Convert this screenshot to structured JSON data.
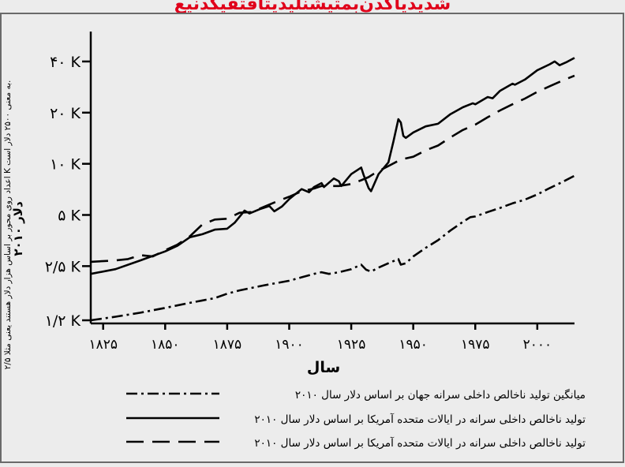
{
  "header_title": "شدیدیاکدن‌بمثیشنلیدیتاقتفیکدنیع",
  "colors": {
    "background": "#ececec",
    "header": "#e0001a",
    "line": "#000000",
    "border": "#6a6a6a"
  },
  "chart_data": {
    "type": "line",
    "xlabel": "سال",
    "ylabel_main": "دلار ۲۰۱۰",
    "ylabel_note": "اعداد روی محور بر اساس هزار دلار هستند یعنی مثلا ۲/۵ K به معنی ۲۵۰۰ دلار است.",
    "x_ticks": [
      1825,
      1850,
      1875,
      1900,
      1925,
      1950,
      1975,
      2000
    ],
    "x_tick_labels": [
      "۱۸۲۵",
      "۱۸۵۰",
      "۱۸۷۵",
      "۱۹۰۰",
      "۱۹۲۵",
      "۱۹۵۰",
      "۱۹۷۵",
      "۲۰۰۰"
    ],
    "y_scale": "log",
    "y_ticks": [
      1.2,
      2.5,
      5,
      10,
      20,
      40
    ],
    "y_tick_labels": [
      "۱/۲ K",
      "۲/۵ K",
      "۵ K",
      "۱۰ K",
      "۲۰ K",
      "۴۰ K"
    ],
    "xlim": [
      1820,
      2015
    ],
    "ylim": [
      1.15,
      60
    ],
    "legend_position": "bottom",
    "series": [
      {
        "name": "میانگین تولید ناخالص داخلی سرانه جهان بر اساس دلار سال ۲۰۱۰",
        "style": "dashdot",
        "points": [
          [
            1820,
            1.2
          ],
          [
            1830,
            1.26
          ],
          [
            1840,
            1.33
          ],
          [
            1850,
            1.42
          ],
          [
            1860,
            1.52
          ],
          [
            1870,
            1.62
          ],
          [
            1875,
            1.72
          ],
          [
            1880,
            1.8
          ],
          [
            1890,
            1.93
          ],
          [
            1900,
            2.05
          ],
          [
            1905,
            2.15
          ],
          [
            1910,
            2.25
          ],
          [
            1913,
            2.3
          ],
          [
            1916,
            2.25
          ],
          [
            1920,
            2.3
          ],
          [
            1925,
            2.4
          ],
          [
            1929,
            2.55
          ],
          [
            1931,
            2.38
          ],
          [
            1933,
            2.32
          ],
          [
            1936,
            2.45
          ],
          [
            1940,
            2.6
          ],
          [
            1944,
            2.75
          ],
          [
            1945,
            2.55
          ],
          [
            1947,
            2.6
          ],
          [
            1950,
            2.85
          ],
          [
            1955,
            3.2
          ],
          [
            1960,
            3.55
          ],
          [
            1965,
            4.05
          ],
          [
            1970,
            4.55
          ],
          [
            1973,
            4.85
          ],
          [
            1975,
            4.9
          ],
          [
            1980,
            5.2
          ],
          [
            1985,
            5.5
          ],
          [
            1990,
            5.85
          ],
          [
            1995,
            6.15
          ],
          [
            2000,
            6.6
          ],
          [
            2005,
            7.2
          ],
          [
            2010,
            7.8
          ],
          [
            2015,
            8.5
          ]
        ]
      },
      {
        "name": "تولید ناخالص داخلی سرانه در ایالات متحده آمریکا بر اساس دلار سال ۲۰۱۰",
        "style": "solid",
        "points": [
          [
            1820,
            2.25
          ],
          [
            1830,
            2.4
          ],
          [
            1840,
            2.7
          ],
          [
            1850,
            3.05
          ],
          [
            1855,
            3.3
          ],
          [
            1860,
            3.7
          ],
          [
            1865,
            3.85
          ],
          [
            1870,
            4.1
          ],
          [
            1875,
            4.15
          ],
          [
            1878,
            4.5
          ],
          [
            1882,
            5.3
          ],
          [
            1884,
            5.1
          ],
          [
            1888,
            5.4
          ],
          [
            1892,
            5.65
          ],
          [
            1894,
            5.25
          ],
          [
            1897,
            5.6
          ],
          [
            1900,
            6.2
          ],
          [
            1905,
            7.1
          ],
          [
            1908,
            6.8
          ],
          [
            1910,
            7.3
          ],
          [
            1913,
            7.7
          ],
          [
            1914,
            7.3
          ],
          [
            1918,
            8.2
          ],
          [
            1920,
            7.9
          ],
          [
            1921,
            7.4
          ],
          [
            1925,
            8.7
          ],
          [
            1929,
            9.5
          ],
          [
            1930,
            8.6
          ],
          [
            1932,
            7.2
          ],
          [
            1933,
            6.9
          ],
          [
            1936,
            8.7
          ],
          [
            1940,
            10.2
          ],
          [
            1942,
            13.5
          ],
          [
            1944,
            18.3
          ],
          [
            1945,
            17.5
          ],
          [
            1946,
            14.6
          ],
          [
            1947,
            14.2
          ],
          [
            1950,
            15.3
          ],
          [
            1955,
            16.6
          ],
          [
            1960,
            17.2
          ],
          [
            1965,
            19.6
          ],
          [
            1970,
            21.5
          ],
          [
            1974,
            22.7
          ],
          [
            1975,
            22.4
          ],
          [
            1980,
            24.7
          ],
          [
            1982,
            24.3
          ],
          [
            1985,
            26.9
          ],
          [
            1990,
            29.6
          ],
          [
            1991,
            29.2
          ],
          [
            1995,
            31.3
          ],
          [
            2000,
            35.5
          ],
          [
            2005,
            38.5
          ],
          [
            2007,
            40.0
          ],
          [
            2009,
            38.0
          ],
          [
            2012,
            39.8
          ],
          [
            2015,
            42.0
          ]
        ]
      },
      {
        "name": "تولید ناخالص داخلی سرانه در ایالات متحده آمریکا بر اساس دلار سال ۲۰۱۰",
        "style": "dashed",
        "points": [
          [
            1820,
            2.65
          ],
          [
            1830,
            2.7
          ],
          [
            1835,
            2.75
          ],
          [
            1840,
            2.9
          ],
          [
            1845,
            2.85
          ],
          [
            1850,
            3.1
          ],
          [
            1855,
            3.35
          ],
          [
            1860,
            3.75
          ],
          [
            1865,
            4.4
          ],
          [
            1870,
            4.7
          ],
          [
            1875,
            4.75
          ],
          [
            1880,
            5.15
          ],
          [
            1885,
            5.2
          ],
          [
            1890,
            5.6
          ],
          [
            1895,
            6.0
          ],
          [
            1900,
            6.4
          ],
          [
            1905,
            6.9
          ],
          [
            1910,
            7.15
          ],
          [
            1913,
            7.4
          ],
          [
            1920,
            7.4
          ],
          [
            1925,
            7.6
          ],
          [
            1929,
            8.0
          ],
          [
            1932,
            8.35
          ],
          [
            1935,
            8.9
          ],
          [
            1940,
            9.7
          ],
          [
            1945,
            10.6
          ],
          [
            1950,
            11.0
          ],
          [
            1955,
            12.0
          ],
          [
            1960,
            12.8
          ],
          [
            1965,
            14.3
          ],
          [
            1970,
            15.8
          ],
          [
            1975,
            17.0
          ],
          [
            1980,
            18.8
          ],
          [
            1985,
            20.6
          ],
          [
            1990,
            22.4
          ],
          [
            1995,
            24.2
          ],
          [
            2000,
            26.5
          ],
          [
            2005,
            28.6
          ],
          [
            2010,
            30.8
          ],
          [
            2015,
            33.0
          ]
        ]
      }
    ]
  }
}
